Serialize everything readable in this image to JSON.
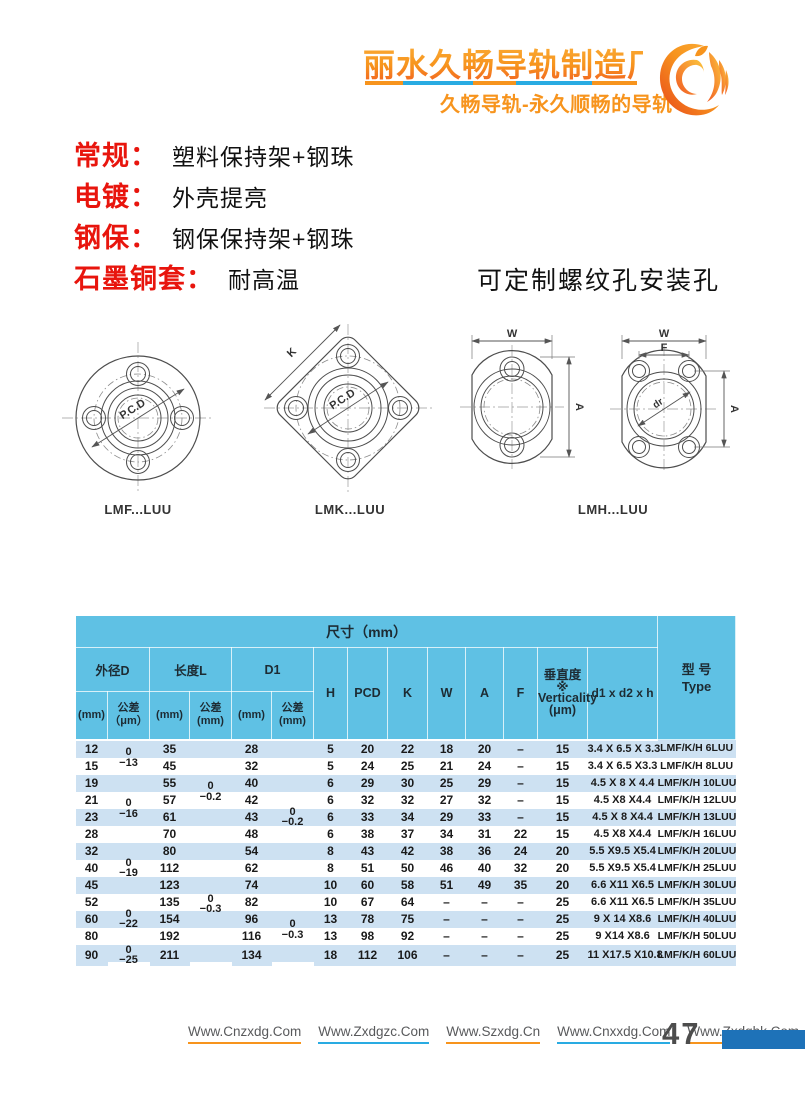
{
  "brand": {
    "company": "丽水久畅导轨制造厂",
    "tagline": "久畅导轨-永久顺畅的导轨"
  },
  "features": [
    {
      "label": "常规：",
      "desc": "塑料保持架+钢珠"
    },
    {
      "label": "电镀：",
      "desc": "外壳提亮"
    },
    {
      "label": "钢保：",
      "desc": "钢保保持架+钢珠"
    },
    {
      "label": "石墨铜套：",
      "desc": "耐高温"
    }
  ],
  "note": "可定制螺纹孔安装孔",
  "drawings": {
    "labels": {
      "lmf": "LMF...LUU",
      "lmk": "LMK...LUU",
      "lmh": "LMH...LUU"
    },
    "dims": {
      "pcd": "P.C.D",
      "k": "K",
      "w": "W",
      "a": "A",
      "f": "F",
      "dr": "dr"
    }
  },
  "table": {
    "size_header": "尺寸（mm）",
    "type_header_cn": "型 号",
    "type_header_en": "Type",
    "group_d": "外径D",
    "group_l": "长度L",
    "group_d1": "D1",
    "sub_mm": "(mm)",
    "sub_tol_um": [
      "公差",
      "（μm）"
    ],
    "sub_tol_mm": [
      "公差",
      "(mm)"
    ],
    "col_h": "H",
    "col_pcd": "PCD",
    "col_k": "K",
    "col_w": "W",
    "col_a": "A",
    "col_f": "F",
    "col_vert": [
      "垂直度",
      "※",
      "Verticality",
      "(μm)"
    ],
    "col_screw": "d1 x d2 x h",
    "rows": [
      [
        "12",
        {
          "s": 2,
          "t": "0",
          "b": "−13",
          "bg": "b"
        },
        "35",
        {
          "s": 6,
          "t": "0",
          "b": "−0.2",
          "bg": "b"
        },
        "28",
        {
          "s": 9,
          "t": "0",
          "b": "−0.2",
          "bg": "b"
        },
        "5",
        "20",
        "22",
        "18",
        "20",
        "–",
        "15",
        "3.4 X 6.5 X 3.3",
        "LMF/K/H 6LUU"
      ],
      [
        "15",
        null,
        "45",
        null,
        "32",
        null,
        "5",
        "24",
        "25",
        "21",
        "24",
        "–",
        "15",
        "3.4 X 6.5 X3.3",
        "LMF/K/H 8LUU"
      ],
      [
        "19",
        {
          "s": 4,
          "t": "0",
          "b": "−16",
          "bg": "b"
        },
        "55",
        null,
        "40",
        null,
        "6",
        "29",
        "30",
        "25",
        "29",
        "–",
        "15",
        "4.5 X 8 X 4.4",
        "LMF/K/H 10LUU"
      ],
      [
        "21",
        null,
        "57",
        null,
        "42",
        null,
        "6",
        "32",
        "32",
        "27",
        "32",
        "–",
        "15",
        "4.5 X8 X4.4",
        "LMF/K/H 12LUU"
      ],
      [
        "23",
        null,
        "61",
        null,
        "43",
        null,
        "6",
        "33",
        "34",
        "29",
        "33",
        "–",
        "15",
        "4.5 X 8 X4.4",
        "LMF/K/H 13LUU"
      ],
      [
        "28",
        null,
        "70",
        null,
        "48",
        null,
        "6",
        "38",
        "37",
        "34",
        "31",
        "22",
        "15",
        "4.5 X8 X4.4",
        "LMF/K/H 16LUU"
      ],
      [
        "32",
        {
          "s": 3,
          "t": "0",
          "b": "−19",
          "bg": "b"
        },
        "80",
        {
          "s": 7,
          "t": "0",
          "b": "−0.3",
          "bg": "b"
        },
        "54",
        null,
        "8",
        "43",
        "42",
        "38",
        "36",
        "24",
        "20",
        "5.5 X9.5 X5.4",
        "LMF/K/H 20LUU"
      ],
      [
        "40",
        null,
        "112",
        null,
        "62",
        null,
        "8",
        "51",
        "50",
        "46",
        "40",
        "32",
        "20",
        "5.5 X9.5 X5.4",
        "LMF/K/H 25LUU"
      ],
      [
        "45",
        null,
        "123",
        null,
        "74",
        null,
        "10",
        "60",
        "58",
        "51",
        "49",
        "35",
        "20",
        "6.6 X11 X6.5",
        "LMF/K/H 30LUU"
      ],
      [
        "52",
        {
          "s": 3,
          "t": "0",
          "b": "−22",
          "bg": "w"
        },
        "135",
        null,
        "82",
        {
          "s": 4,
          "t": "0",
          "b": "−0.3",
          "bg": "w"
        },
        "10",
        "67",
        "64",
        "–",
        "–",
        "–",
        "25",
        "6.6 X11 X6.5",
        "LMF/K/H 35LUU"
      ],
      [
        "60",
        null,
        "154",
        null,
        "96",
        null,
        "13",
        "78",
        "75",
        "–",
        "–",
        "–",
        "25",
        "9 X 14 X8.6",
        "LMF/K/H 40LUU"
      ],
      [
        "80",
        null,
        "192",
        null,
        "116",
        null,
        "13",
        "98",
        "92",
        "–",
        "–",
        "–",
        "25",
        "9 X14 X8.6",
        "LMF/K/H 50LUU"
      ],
      [
        "90",
        {
          "s": 1,
          "t": "0",
          "b": "−25",
          "bg": "b"
        },
        "211",
        null,
        "134",
        null,
        "18",
        "112",
        "106",
        "–",
        "–",
        "–",
        "25",
        "11 X17.5 X10.8",
        "LMF/K/H 60LUU"
      ]
    ]
  },
  "footer": {
    "sites": [
      "Www.Cnzxdg.Com",
      "Www.Zxdgzc.Com",
      "Www.Szxdg.Cn",
      "Www.Cnxxdg.Com",
      "Www.Zxdghk.Com"
    ],
    "page": "47"
  },
  "colors": {
    "accent_orange": "#f7941d",
    "accent_blue": "#29abe2",
    "red_label": "#e8150d",
    "table_header": "#5fc1e4",
    "table_stripe": "#cde1f2",
    "footer_bar": "#1e72b8"
  }
}
